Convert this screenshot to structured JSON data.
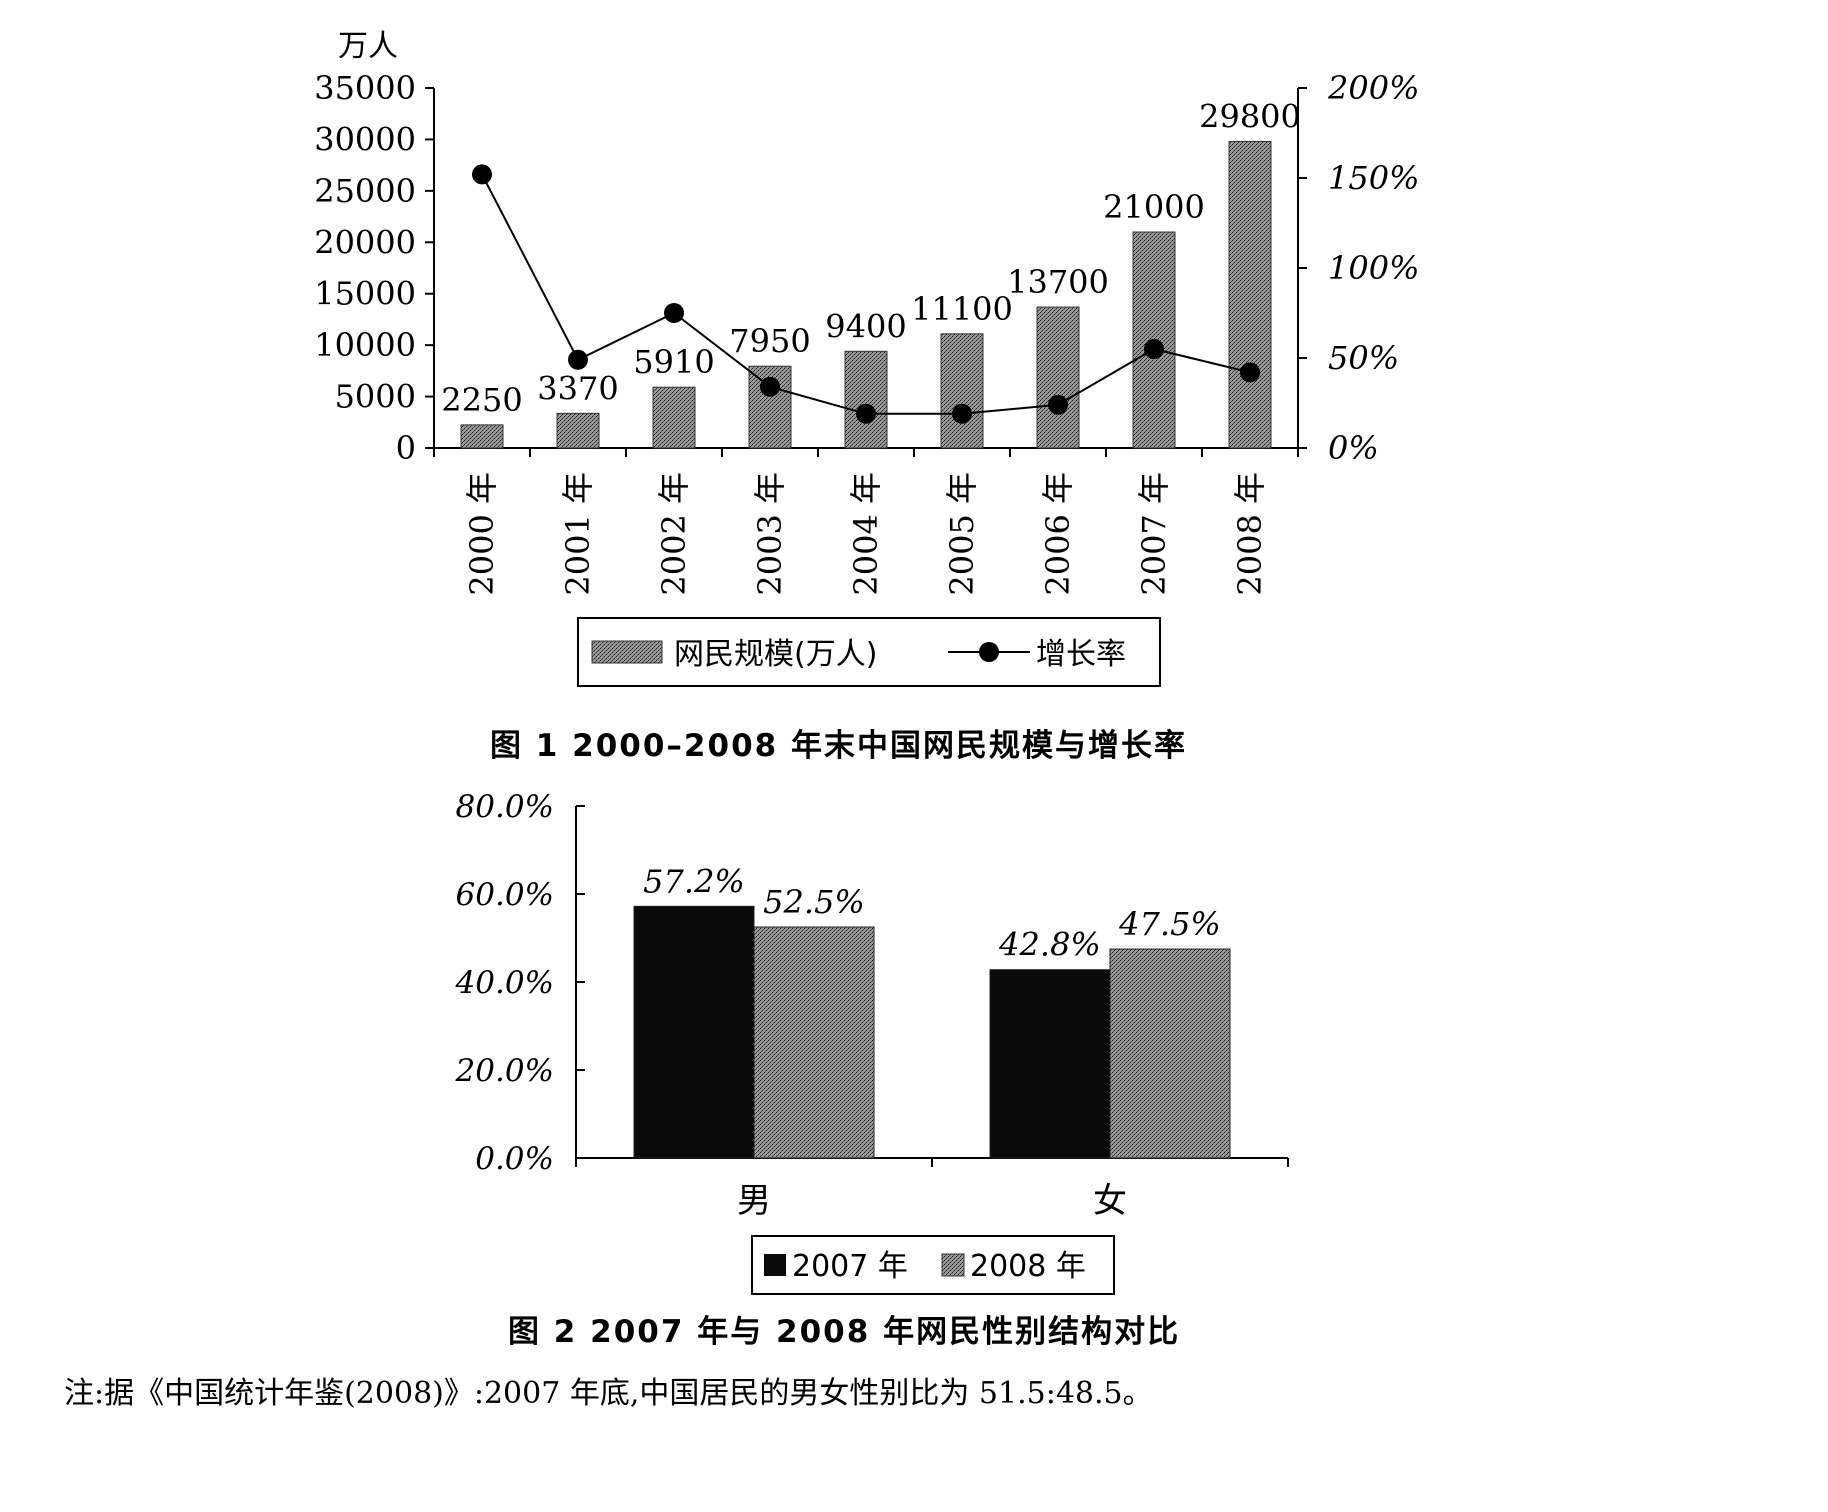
{
  "colors": {
    "ink": "#000000",
    "bar_fill": "#8c8c8c",
    "bar_dark": "#0a0a0a",
    "paper": "#ffffff"
  },
  "fig1": {
    "caption": "图 1  2000–2008 年末中国网民规模与增长率",
    "unit_label": "万人"
  },
  "fig2": {
    "caption": "图 2   2007 年与 2008 年网民性别结构对比"
  },
  "note": "注:据《中国统计年鉴(2008)》:2007 年底,中国居民的男女性别比为 51.5:48.5。",
  "chart_data": [
    {
      "type": "bar",
      "categories": [
        "2000 年",
        "2001 年",
        "2002 年",
        "2003 年",
        "2004 年",
        "2005 年",
        "2006 年",
        "2007 年",
        "2008 年"
      ],
      "series": [
        {
          "name": "网民规模(万人)",
          "type": "bar",
          "axis": "left",
          "values": [
            2250,
            3370,
            5910,
            7950,
            9400,
            11100,
            13700,
            21000,
            29800
          ],
          "labels": [
            "2250",
            "3370",
            "5910",
            "7950",
            "9400",
            "11100",
            "13700",
            "21000",
            "29800"
          ]
        },
        {
          "name": "增长率",
          "type": "line",
          "axis": "right",
          "values": [
            152,
            49,
            75,
            34,
            19,
            19,
            24,
            55,
            42
          ]
        }
      ],
      "ylabel": "万人",
      "ylim": [
        0,
        35000
      ],
      "yticks": [
        "0",
        "5000",
        "10000",
        "15000",
        "20000",
        "25000",
        "30000",
        "35000"
      ],
      "y2lim": [
        0,
        200
      ],
      "y2ticks": [
        "0%",
        "50%",
        "100%",
        "150%",
        "200%"
      ],
      "legend": "bottom",
      "grid": false
    },
    {
      "type": "bar",
      "categories": [
        "男",
        "女"
      ],
      "series": [
        {
          "name": "2007 年",
          "values": [
            57.2,
            42.8
          ],
          "labels": [
            "57.2%",
            "42.8%"
          ]
        },
        {
          "name": "2008 年",
          "values": [
            52.5,
            47.5
          ],
          "labels": [
            "52.5%",
            "47.5%"
          ]
        }
      ],
      "ylim": [
        0,
        80
      ],
      "yticks": [
        "0.0%",
        "20.0%",
        "40.0%",
        "60.0%",
        "80.0%"
      ],
      "legend": "bottom",
      "grid": false
    }
  ]
}
